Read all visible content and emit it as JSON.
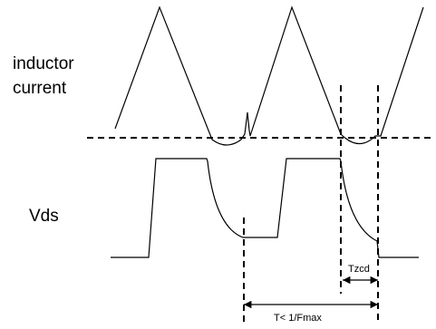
{
  "labels": {
    "inductor_line1": "inductor",
    "inductor_line2": "current",
    "vds": "Vds",
    "tzcd": "Tzcd",
    "period": "T< 1/Fmax"
  },
  "colors": {
    "stroke": "#000000",
    "background": "#ffffff"
  }
}
